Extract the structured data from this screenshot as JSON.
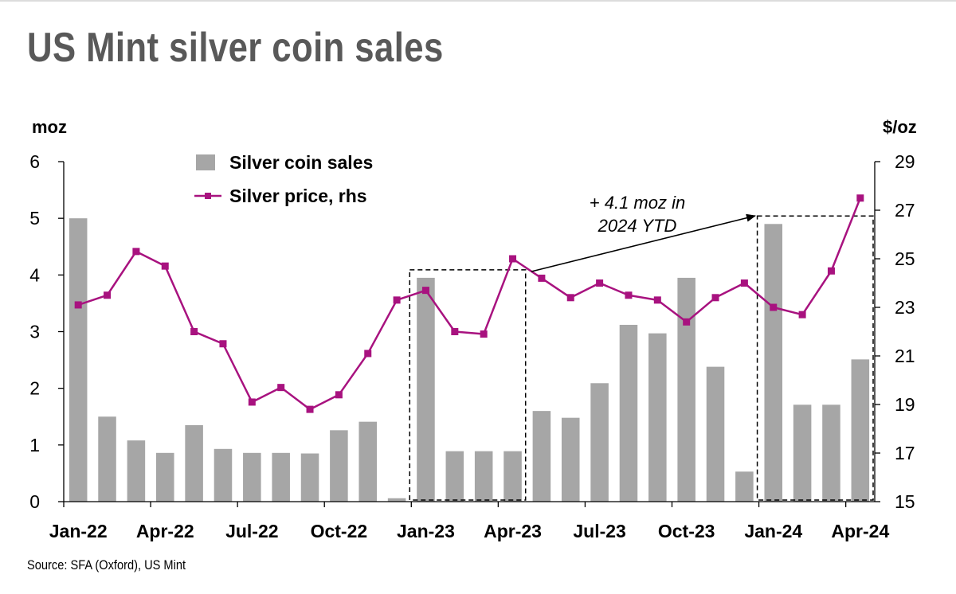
{
  "title": "US Mint silver coin sales",
  "source": "Source: SFA (Oxford), US Mint",
  "colors": {
    "bar": "#a6a6a6",
    "line": "#a8127f",
    "axis": "#000000",
    "title": "#595959"
  },
  "chart_data": {
    "type": "bar+line",
    "x": [
      "Jan-22",
      "Feb-22",
      "Mar-22",
      "Apr-22",
      "May-22",
      "Jun-22",
      "Jul-22",
      "Aug-22",
      "Sep-22",
      "Oct-22",
      "Nov-22",
      "Dec-22",
      "Jan-23",
      "Feb-23",
      "Mar-23",
      "Apr-23",
      "May-23",
      "Jun-23",
      "Jul-23",
      "Aug-23",
      "Sep-23",
      "Oct-23",
      "Nov-23",
      "Dec-23",
      "Jan-24",
      "Feb-24",
      "Mar-24",
      "Apr-24"
    ],
    "x_tick_labels": [
      "Jan-22",
      "Apr-22",
      "Jul-22",
      "Oct-22",
      "Jan-23",
      "Apr-23",
      "Jul-23",
      "Oct-23",
      "Jan-24",
      "Apr-24"
    ],
    "series": [
      {
        "name": "Silver coin sales",
        "type": "bar",
        "axis": "left",
        "values": [
          5.0,
          1.5,
          1.08,
          0.86,
          1.35,
          0.93,
          0.86,
          0.86,
          0.85,
          1.26,
          1.41,
          0.06,
          3.95,
          0.89,
          0.89,
          0.89,
          1.6,
          1.48,
          2.09,
          3.12,
          2.97,
          3.95,
          2.38,
          0.53,
          4.9,
          1.71,
          1.71,
          2.51
        ]
      },
      {
        "name": "Silver price, rhs",
        "type": "line",
        "axis": "right",
        "values": [
          23.1,
          23.5,
          25.3,
          24.7,
          22.0,
          21.5,
          19.1,
          19.7,
          18.8,
          19.4,
          21.1,
          23.3,
          23.7,
          22.0,
          21.9,
          25.0,
          24.2,
          23.4,
          24.0,
          23.5,
          23.3,
          22.4,
          23.4,
          24.0,
          23.0,
          22.7,
          24.5,
          27.5
        ]
      }
    ],
    "y_left": {
      "label": "moz",
      "ylim": [
        0,
        6
      ],
      "ticks": [
        0,
        1,
        2,
        3,
        4,
        5,
        6
      ]
    },
    "y_right": {
      "label": "$/oz",
      "ylim": [
        15,
        29
      ],
      "ticks": [
        15,
        17,
        19,
        21,
        23,
        25,
        27,
        29
      ]
    },
    "legend_position": "top-left",
    "highlight_boxes": [
      {
        "from": "Jan-23",
        "to": "Apr-23"
      },
      {
        "from": "Jan-24",
        "to": "Apr-24"
      }
    ],
    "annotation": {
      "text_lines": [
        "+ 4.1 moz in",
        "2024 YTD"
      ],
      "arrow": "Apr-23 box to Jan-24 box"
    }
  }
}
